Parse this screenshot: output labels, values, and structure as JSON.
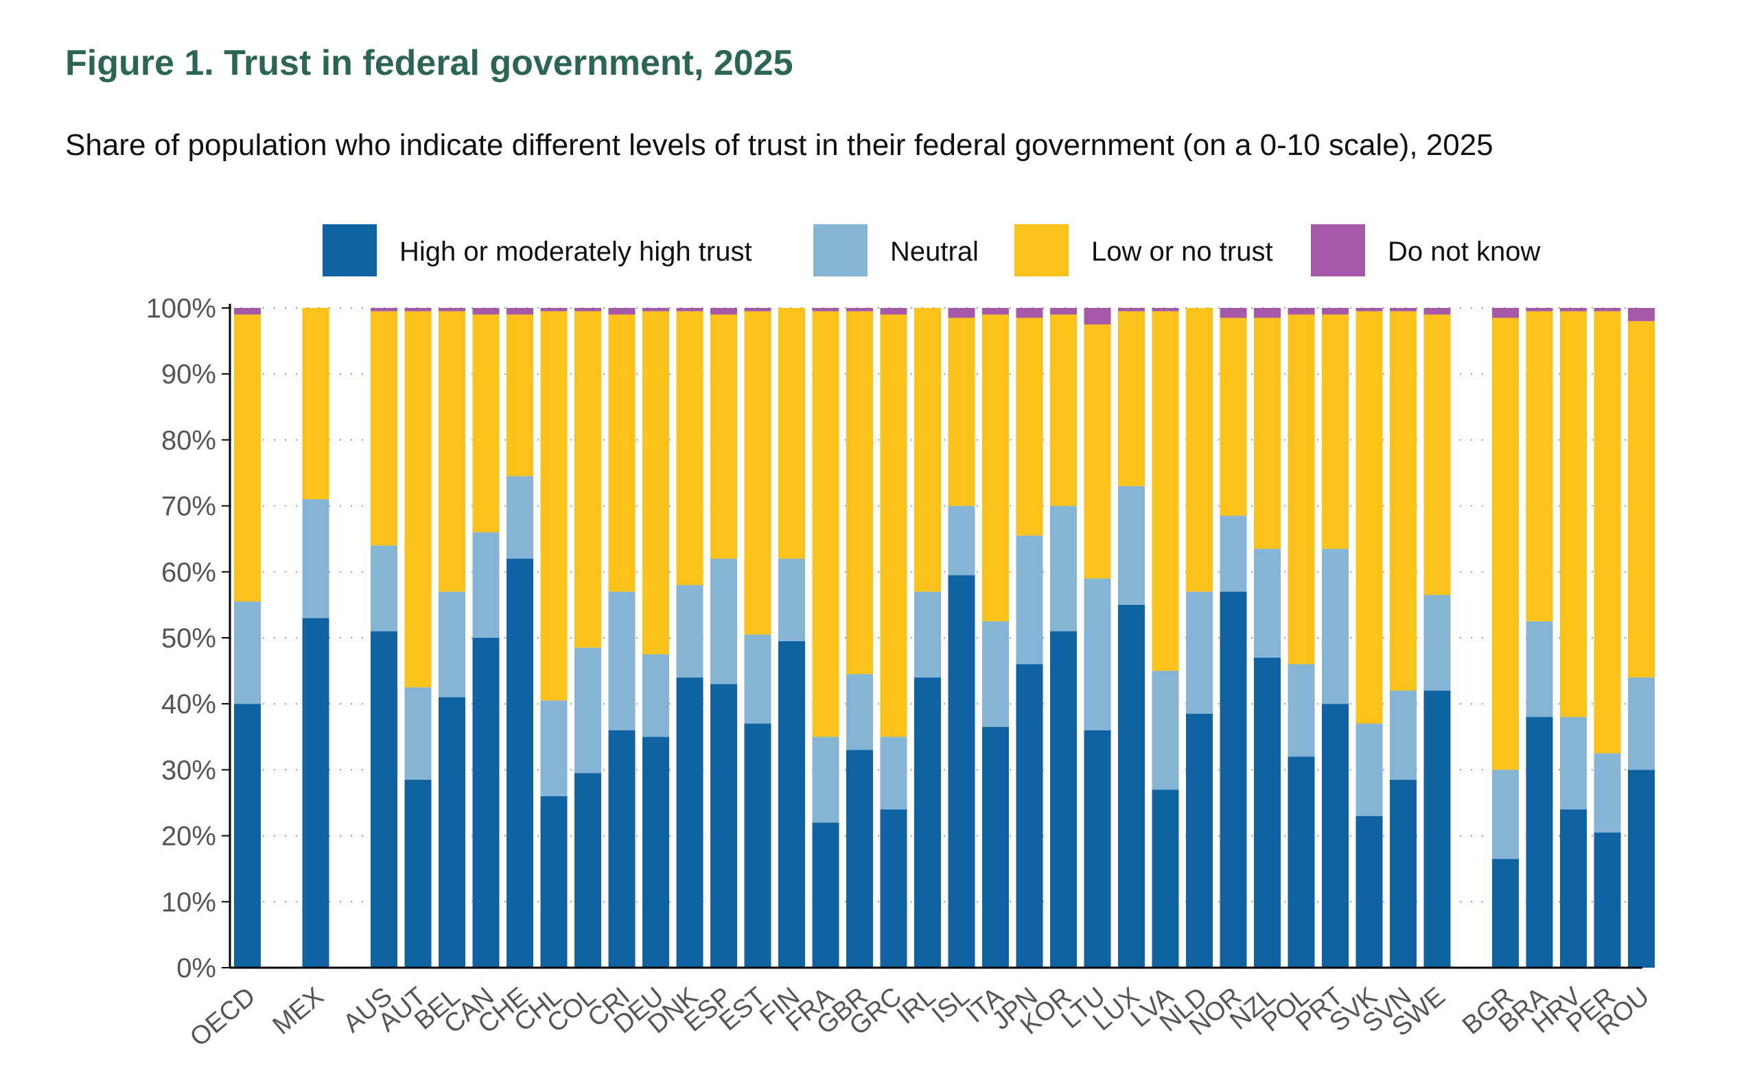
{
  "title": "Figure 1. Trust in federal government, 2025",
  "subtitle": "Share of population who indicate different levels of trust in their federal government (on a 0-10 scale), 2025",
  "colors": {
    "high": "#0f63a3",
    "neutral": "#85b4d5",
    "low": "#fbc21a",
    "dont_know": "#a45aa8",
    "title": "#2b6553",
    "axis": "#000000",
    "grid": "#9a9a9a",
    "tick_label": "#555555"
  },
  "chart_data": {
    "type": "bar",
    "stacked": true,
    "ylim": [
      0,
      100
    ],
    "yticks": [
      "0%",
      "10%",
      "20%",
      "30%",
      "40%",
      "50%",
      "60%",
      "70%",
      "80%",
      "90%",
      "100%"
    ],
    "grid": "horizontal dotted",
    "legend_position": "top",
    "categories": [
      "OECD",
      "MEX",
      "AUS",
      "AUT",
      "BEL",
      "CAN",
      "CHE",
      "CHL",
      "COL",
      "CRI",
      "DEU",
      "DNK",
      "ESP",
      "EST",
      "FIN",
      "FRA",
      "GBR",
      "GRC",
      "IRL",
      "ISL",
      "ITA",
      "JPN",
      "KOR",
      "LTU",
      "LUX",
      "LVA",
      "NLD",
      "NOR",
      "NZL",
      "POL",
      "PRT",
      "SVK",
      "SVN",
      "SWE",
      "BGR",
      "BRA",
      "HRV",
      "PER",
      "ROU"
    ],
    "groups": [
      1,
      1,
      32,
      5
    ],
    "series": [
      {
        "name": "High or moderately high trust",
        "color_key": "high",
        "values": [
          40,
          53,
          51,
          28.5,
          41,
          50,
          62,
          26,
          29.5,
          36,
          35,
          44,
          43,
          37,
          49.5,
          22,
          33,
          24,
          44,
          59.5,
          36.5,
          46,
          51,
          36,
          55,
          27,
          38.5,
          57,
          47,
          32,
          40,
          23,
          28.5,
          42,
          16.5,
          38,
          24,
          20.5,
          30
        ]
      },
      {
        "name": "Neutral",
        "color_key": "neutral",
        "values": [
          15.5,
          18,
          13,
          14,
          16,
          16,
          12.5,
          14.5,
          19,
          21,
          12.5,
          14,
          19,
          13.5,
          12.5,
          13,
          11.5,
          11,
          13,
          10.5,
          16,
          19.5,
          19,
          23,
          18,
          18,
          18.5,
          11.5,
          16.5,
          14,
          23.5,
          14,
          13.5,
          14.5,
          13.5,
          14.5,
          14,
          12,
          14
        ]
      },
      {
        "name": "Low or no trust",
        "color_key": "low",
        "values": [
          43.5,
          29,
          35.5,
          57,
          42.5,
          33,
          24.5,
          59,
          51,
          42,
          52,
          41.5,
          37,
          49,
          38,
          64.5,
          55,
          64,
          43,
          28.5,
          46.5,
          33,
          29,
          38.5,
          26.5,
          54.5,
          43,
          30,
          35,
          53,
          35.5,
          62.5,
          57.5,
          42.5,
          68.5,
          47,
          61.5,
          67,
          54
        ]
      },
      {
        "name": "Do not know",
        "color_key": "dont_know",
        "values": [
          1,
          0,
          0.5,
          0.5,
          0.5,
          1,
          1,
          0.5,
          0.5,
          1,
          0.5,
          0.5,
          1,
          0.5,
          0,
          0.5,
          0.5,
          1,
          0,
          1.5,
          1,
          1.5,
          1,
          2.5,
          0.5,
          0.5,
          0,
          1.5,
          1.5,
          1,
          1,
          0.5,
          0.5,
          1,
          1.5,
          0.5,
          0.5,
          0.5,
          2
        ]
      }
    ]
  }
}
